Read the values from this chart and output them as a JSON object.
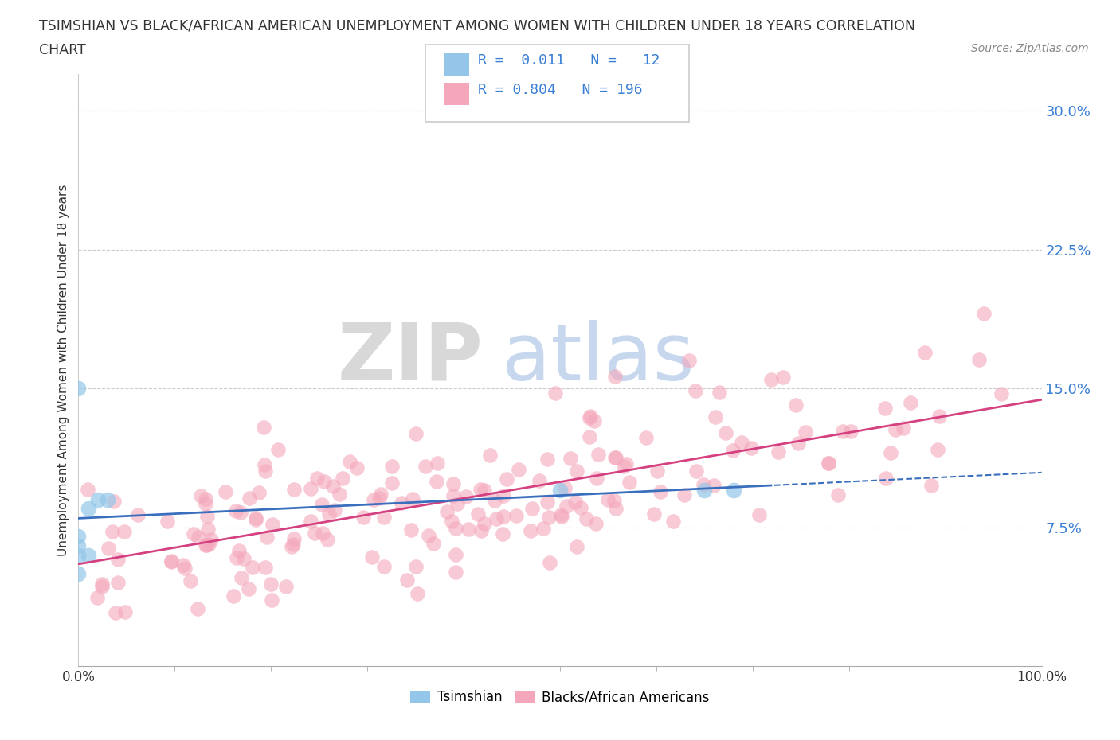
{
  "title_line1": "TSIMSHIAN VS BLACK/AFRICAN AMERICAN UNEMPLOYMENT AMONG WOMEN WITH CHILDREN UNDER 18 YEARS CORRELATION",
  "title_line2": "CHART",
  "source_text": "Source: ZipAtlas.com",
  "ylabel": "Unemployment Among Women with Children Under 18 years",
  "xlim": [
    0.0,
    1.0
  ],
  "ylim": [
    0.0,
    0.32
  ],
  "yticks": [
    0.075,
    0.15,
    0.225,
    0.3
  ],
  "ytick_labels": [
    "7.5%",
    "15.0%",
    "22.5%",
    "30.0%"
  ],
  "xtick_labels": [
    "0.0%",
    "100.0%"
  ],
  "color_tsimshian": "#93c6e8",
  "color_black": "#f4a7bb",
  "color_tsimshian_line": "#3a6fbd",
  "color_black_line": "#d44080",
  "color_blue_text": "#3a7fd4",
  "background_color": "#ffffff",
  "watermark_zip": "ZIP",
  "watermark_atlas": "atlas",
  "tsimshian_x": [
    0.0,
    0.0,
    0.0,
    0.0,
    0.0,
    0.01,
    0.01,
    0.02,
    0.03,
    0.5,
    0.65,
    0.68
  ],
  "tsimshian_y": [
    0.05,
    0.06,
    0.065,
    0.07,
    0.15,
    0.085,
    0.06,
    0.09,
    0.09,
    0.095,
    0.095,
    0.095
  ],
  "seed": 42
}
